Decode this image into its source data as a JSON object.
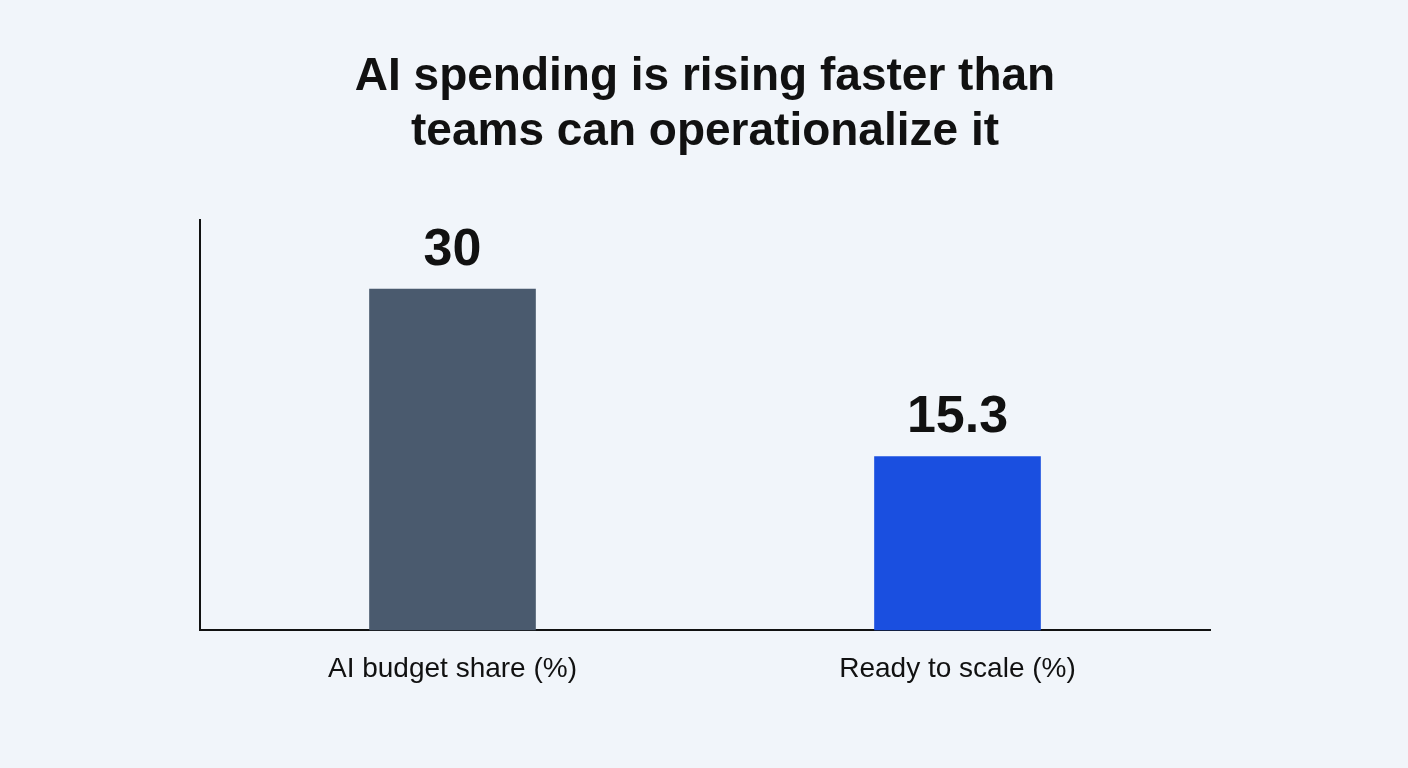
{
  "chart_data": {
    "type": "bar",
    "title": "AI spending is rising faster than teams can operationalize it",
    "categories": [
      "AI budget share (%)",
      "Ready to scale (%)"
    ],
    "values": [
      30,
      15.3
    ],
    "colors": [
      "#4a5a6e",
      "#1a4fe0"
    ],
    "ylim": [
      0,
      36
    ],
    "tick_labels": "x",
    "data_labels": true
  }
}
